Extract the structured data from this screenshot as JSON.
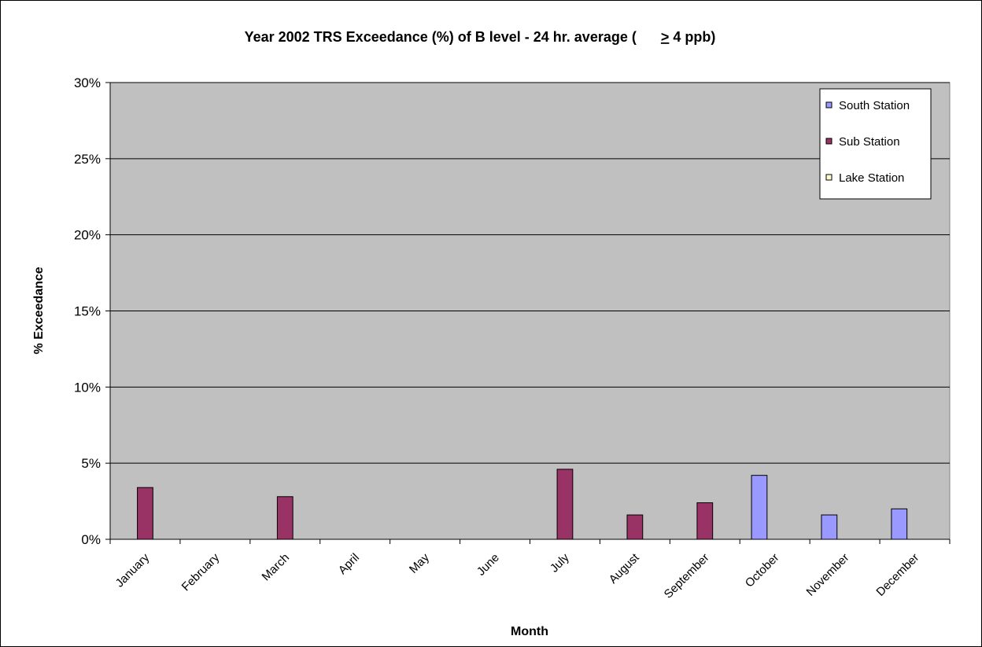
{
  "chart_data": {
    "type": "bar",
    "title": "Year 2002 TRS Exceedance (%) of B level - 24 hr. average (",
    "title_symbol": ">",
    "title_suffix": "4 ppb)",
    "xlabel": "Month",
    "ylabel": "% Exceedance",
    "ylim": [
      0,
      30
    ],
    "yticks": [
      "0%",
      "5%",
      "10%",
      "15%",
      "20%",
      "25%",
      "30%"
    ],
    "ytick_values": [
      0,
      5,
      10,
      15,
      20,
      25,
      30
    ],
    "grid": true,
    "legend_position": "top-right",
    "categories": [
      "January",
      "February",
      "March",
      "April",
      "May",
      "June",
      "July",
      "August",
      "September",
      "October",
      "November",
      "December"
    ],
    "series": [
      {
        "name": "South Station",
        "color": "#9999ff",
        "values": [
          0,
          0,
          0,
          0,
          0,
          0,
          0,
          0,
          0,
          4.2,
          1.6,
          2.0
        ]
      },
      {
        "name": "Sub Station",
        "color": "#993366",
        "values": [
          3.4,
          0,
          2.8,
          0,
          0,
          0,
          4.6,
          1.6,
          2.4,
          0,
          0,
          0
        ]
      },
      {
        "name": "Lake Station",
        "color": "#ffffcc",
        "values": [
          0,
          0,
          0,
          0,
          0,
          0,
          0,
          0,
          0,
          0,
          0,
          0
        ]
      }
    ],
    "plot_background": "#c0c0c0"
  }
}
